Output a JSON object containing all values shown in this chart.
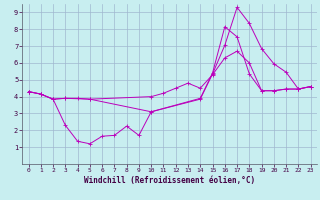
{
  "xlabel": "Windchill (Refroidissement éolien,°C)",
  "bg_color": "#c8eef0",
  "grid_color": "#a0b8d0",
  "line_color": "#bb00bb",
  "xlim": [
    -0.5,
    23.5
  ],
  "ylim": [
    0,
    9.5
  ],
  "xticks": [
    0,
    1,
    2,
    3,
    4,
    5,
    6,
    7,
    8,
    9,
    10,
    11,
    12,
    13,
    14,
    15,
    16,
    17,
    18,
    19,
    20,
    21,
    22,
    23
  ],
  "yticks": [
    1,
    2,
    3,
    4,
    5,
    6,
    7,
    8,
    9
  ],
  "line1_x": [
    0,
    1,
    2,
    3,
    4,
    5,
    10,
    14,
    15,
    16,
    17,
    18,
    19,
    20,
    21,
    22,
    23
  ],
  "line1_y": [
    4.3,
    4.15,
    3.85,
    3.9,
    3.9,
    3.85,
    3.1,
    3.85,
    5.35,
    7.05,
    9.3,
    8.35,
    6.85,
    5.95,
    5.45,
    4.45,
    4.6
  ],
  "line2_x": [
    0,
    1,
    2,
    3,
    4,
    5,
    6,
    7,
    8,
    9,
    10,
    14,
    15,
    16,
    17,
    18,
    19,
    20,
    21,
    22,
    23
  ],
  "line2_y": [
    4.3,
    4.15,
    3.85,
    2.3,
    1.35,
    1.2,
    1.65,
    1.7,
    2.25,
    1.7,
    3.1,
    3.9,
    5.4,
    8.15,
    7.55,
    5.35,
    4.35,
    4.35,
    4.45,
    4.45,
    4.6
  ],
  "line3_x": [
    0,
    1,
    2,
    3,
    5,
    10,
    11,
    12,
    13,
    14,
    15,
    16,
    17,
    18,
    19,
    20,
    21,
    22,
    23
  ],
  "line3_y": [
    4.3,
    4.15,
    3.85,
    3.9,
    3.85,
    4.0,
    4.2,
    4.5,
    4.8,
    4.5,
    5.3,
    6.3,
    6.7,
    6.0,
    4.35,
    4.35,
    4.45,
    4.45,
    4.6
  ]
}
